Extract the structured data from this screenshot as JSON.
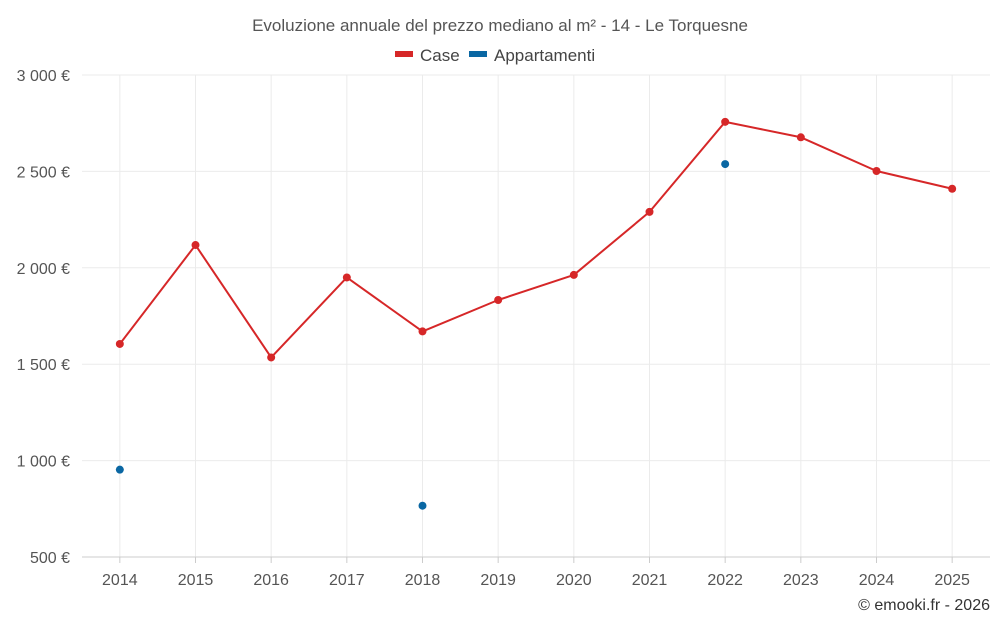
{
  "chart_data": {
    "type": "line",
    "title": "Evoluzione annuale del prezzo mediano al m² - 14 - Le Torquesne",
    "categories": [
      "2014",
      "2015",
      "2016",
      "2017",
      "2018",
      "2019",
      "2020",
      "2021",
      "2022",
      "2023",
      "2024",
      "2025"
    ],
    "ylim": [
      500,
      3000
    ],
    "yticks": [
      500,
      1000,
      1500,
      2000,
      2500,
      3000
    ],
    "ytick_labels": [
      "500 €",
      "1 000 €",
      "1 500 €",
      "2 000 €",
      "2 500 €",
      "3 000 €"
    ],
    "xlabel": "",
    "ylabel": "",
    "legend_position": "top-center",
    "series": [
      {
        "name": "Case",
        "color": "#d62728",
        "values": [
          1605,
          2118,
          1535,
          1950,
          1670,
          1833,
          1963,
          2290,
          2757,
          2677,
          2502,
          2410
        ]
      },
      {
        "name": "Appartamenti",
        "color": "#0a67a3",
        "values": [
          953,
          null,
          null,
          null,
          766,
          null,
          null,
          null,
          2538,
          null,
          null,
          null
        ]
      }
    ]
  },
  "credit": "© emooki.fr - 2026"
}
